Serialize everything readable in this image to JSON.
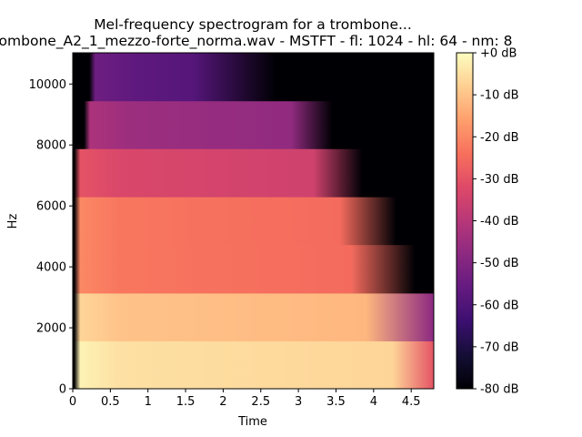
{
  "chart_data": {
    "type": "heatmap",
    "title_line1": "Mel-frequency spectrogram for a trombone...",
    "title_line2": "rombone_A2_1_mezzo-forte_norma.wav - MSTFT - fl: 1024 - hl: 64 - nm: 8",
    "xlabel": "Time",
    "ylabel": "Hz",
    "xlim": [
      0,
      4.8
    ],
    "ylim": [
      0,
      11025
    ],
    "x_ticks": [
      0,
      0.5,
      1,
      1.5,
      2,
      2.5,
      3,
      3.5,
      4,
      4.5
    ],
    "x_tick_labels": [
      "0",
      "0.5",
      "1",
      "1.5",
      "2",
      "2.5",
      "3",
      "3.5",
      "4",
      "4.5"
    ],
    "y_ticks": [
      0,
      2000,
      4000,
      6000,
      8000,
      10000
    ],
    "y_tick_labels": [
      "0",
      "2000",
      "4000",
      "6000",
      "8000",
      "10000"
    ],
    "colormap": "magma",
    "colorbar": {
      "range": [
        -80,
        0
      ],
      "ticks": [
        0,
        -10,
        -20,
        -30,
        -40,
        -50,
        -60,
        -70,
        -80
      ],
      "tick_labels": [
        "+0 dB",
        "-10 dB",
        "-20 dB",
        "-30 dB",
        "-40 dB",
        "-50 dB",
        "-60 dB",
        "-70 dB",
        "-80 dB"
      ]
    },
    "mel_bands": [
      {
        "f_low": 0,
        "f_high": 1570,
        "onset": 0.02,
        "sustain_db": -5,
        "offset": 4.8,
        "decay_start": 4.25,
        "end_db": -30
      },
      {
        "f_low": 1570,
        "f_high": 3140,
        "onset": 0.02,
        "sustain_db": -10,
        "offset": 4.8,
        "decay_start": 3.9,
        "end_db": -48
      },
      {
        "f_low": 3140,
        "f_high": 4730,
        "onset": 0.02,
        "sustain_db": -23,
        "offset": 4.55,
        "decay_start": 3.7,
        "end_db": -80
      },
      {
        "f_low": 4730,
        "f_high": 6300,
        "onset": 0.02,
        "sustain_db": -23,
        "offset": 4.3,
        "decay_start": 3.55,
        "end_db": -80
      },
      {
        "f_low": 6300,
        "f_high": 7880,
        "onset": 0.02,
        "sustain_db": -33,
        "offset": 3.85,
        "decay_start": 3.2,
        "end_db": -80
      },
      {
        "f_low": 7880,
        "f_high": 9450,
        "onset": 0.15,
        "sustain_db": -45,
        "offset": 3.45,
        "decay_start": 2.9,
        "end_db": -80
      },
      {
        "f_low": 9450,
        "f_high": 11025,
        "onset": 0.22,
        "sustain_db": -57,
        "offset": 2.7,
        "decay_start": 1.6,
        "end_db": -80
      }
    ]
  }
}
